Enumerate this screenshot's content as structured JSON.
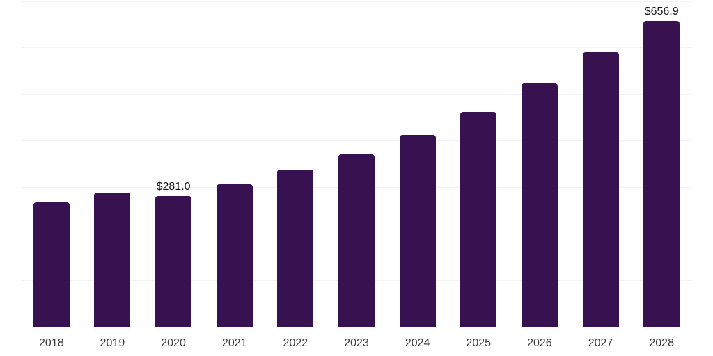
{
  "chart_data": {
    "type": "bar",
    "title": "",
    "xlabel": "",
    "ylabel": "",
    "categories": [
      "2018",
      "2019",
      "2020",
      "2021",
      "2022",
      "2023",
      "2024",
      "2025",
      "2026",
      "2027",
      "2028"
    ],
    "values": [
      267.7,
      288.4,
      281.0,
      305.8,
      337.7,
      370.5,
      412.8,
      461.7,
      523.0,
      590.2,
      656.9
    ],
    "point_labels": [
      "",
      "",
      "$281.0",
      "",
      "",
      "",
      "",
      "",
      "",
      "",
      "$656.9"
    ],
    "ylim": [
      0,
      700
    ],
    "gridline_step": 100,
    "grid": true,
    "legend": "none",
    "colors": {
      "bar": "#371150",
      "gridline": "#f3f3f4",
      "axis_line": "#303030",
      "tick_label": "#3d3d3d",
      "data_label": "#111111",
      "background": "#ffffff"
    }
  }
}
